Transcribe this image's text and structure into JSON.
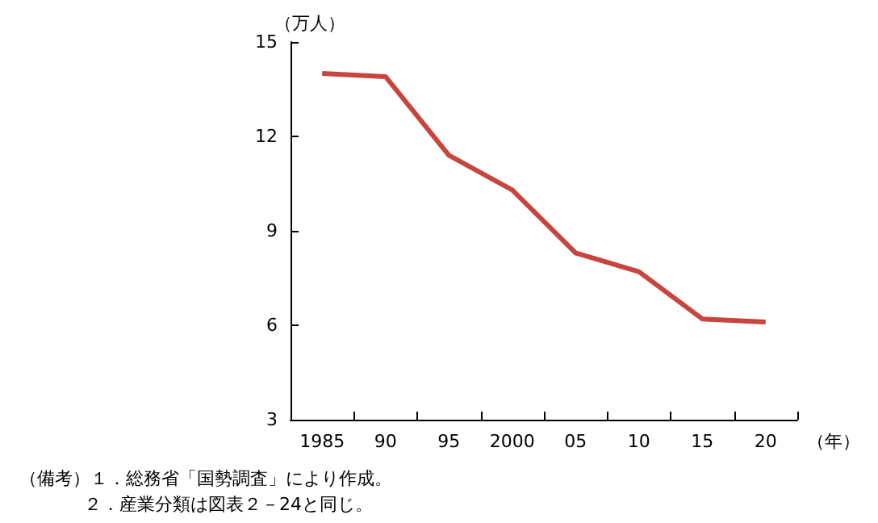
{
  "chart_data": {
    "type": "line",
    "ylabel": "（万人）",
    "xlabel": "（年）",
    "categories": [
      "1985",
      "90",
      "95",
      "2000",
      "05",
      "10",
      "15",
      "20"
    ],
    "series": [
      {
        "color": "#c8453f",
        "values": [
          14.0,
          13.9,
          11.4,
          10.3,
          8.3,
          7.7,
          6.2,
          6.1
        ]
      }
    ],
    "ylim": [
      3,
      15
    ],
    "yticks": [
      3,
      6,
      9,
      12,
      15
    ],
    "grid": false,
    "marker": "none",
    "line_style": "solid",
    "annotations": [
      "（備考）１．総務省「国勢調査」により作成。",
      "２．産業分類は図表２－24と同じ。"
    ]
  }
}
